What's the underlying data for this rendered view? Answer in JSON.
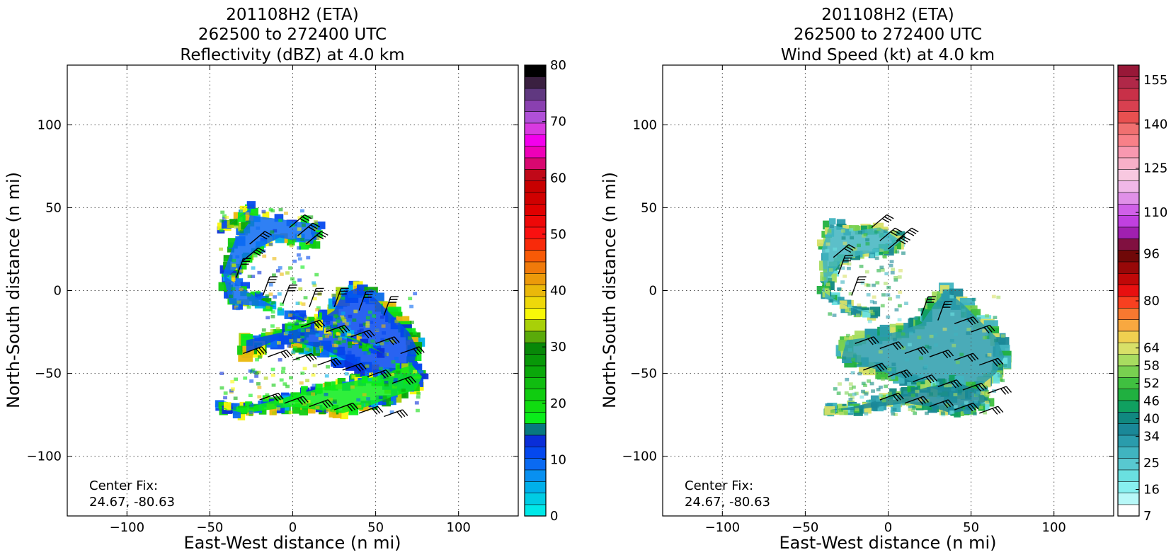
{
  "chart_data": [
    {
      "type": "heatmap",
      "panel": "left",
      "title_lines": [
        "201108H2 (ETA)",
        "262500 to 272400 UTC",
        "Reflectivity (dBZ) at 4.0 km"
      ],
      "xlabel": "East-West distance (n mi)",
      "ylabel": "North-South distance (n mi)",
      "xlim": [
        -136,
        136
      ],
      "ylim": [
        -136,
        136
      ],
      "x_ticks": [
        -100,
        -50,
        0,
        50,
        100
      ],
      "y_ticks": [
        -100,
        -50,
        0,
        50,
        100
      ],
      "x_tick_labels": [
        "−100",
        "−50",
        "0",
        "50",
        "100"
      ],
      "y_tick_labels": [
        "−100",
        "−50",
        "0",
        "50",
        "100"
      ],
      "grid": true,
      "annotation": [
        "Center Fix:",
        "24.67, -80.63"
      ],
      "colorbar": {
        "min": 0,
        "max": 80,
        "tick_values": [
          0,
          10,
          20,
          30,
          40,
          50,
          60,
          70,
          80
        ],
        "tick_labels": [
          "0",
          "10",
          "20",
          "30",
          "40",
          "50",
          "60",
          "70",
          "80"
        ],
        "colors": [
          "#00e8e8",
          "#00cce4",
          "#00b0ea",
          "#0890f0",
          "#0a6af2",
          "#0448ee",
          "#0a2ed8",
          "#087880",
          "#0aec1a",
          "#10dc10",
          "#10cc10",
          "#10bc10",
          "#0aa80a",
          "#089808",
          "#088808",
          "#5aaa0a",
          "#a8d008",
          "#f8f808",
          "#eed80a",
          "#eab80a",
          "#ec9a0a",
          "#f07a0a",
          "#f85a06",
          "#f82a0a",
          "#fa1010",
          "#ee0808",
          "#e00000",
          "#d00000",
          "#c80000",
          "#c00818",
          "#d80870",
          "#ee00b8",
          "#f200ec",
          "#d83ae0",
          "#b050d8",
          "#8a40b0",
          "#603880",
          "#3a2040",
          "#000000"
        ]
      },
      "echo_regions": [
        {
          "x": [
            -30,
            15,
            12,
            -8,
            -20,
            -32,
            -40,
            -22,
            -10,
            -38,
            -42,
            -35,
            -27,
            -25,
            -45
          ],
          "y": [
            46,
            40,
            28,
            32,
            26,
            15,
            8,
            -4,
            -10,
            -8,
            10,
            30,
            40,
            50,
            35
          ],
          "r": 5
        },
        {
          "x": [
            -28,
            -10,
            10,
            25,
            30,
            40,
            50,
            60,
            70,
            75,
            72,
            62,
            50,
            38,
            28,
            18,
            5,
            -10,
            -22,
            -28
          ],
          "y": [
            -30,
            -26,
            -22,
            -12,
            -2,
            2,
            -5,
            -15,
            -25,
            -35,
            -50,
            -58,
            -52,
            -45,
            -40,
            -35,
            -32,
            -30,
            -35,
            -38
          ],
          "r": 7
        },
        {
          "x": [
            -40,
            -25,
            -10,
            5,
            20,
            35,
            50,
            62,
            72,
            78,
            74,
            60,
            45,
            30,
            15,
            0,
            -15,
            -30,
            -45
          ],
          "y": [
            -72,
            -70,
            -66,
            -62,
            -58,
            -55,
            -52,
            -48,
            -45,
            -52,
            -60,
            -64,
            -70,
            -74,
            -72,
            -70,
            -72,
            -74,
            -70
          ],
          "r": 5
        },
        {
          "x": [
            -5,
            10,
            25,
            40,
            55
          ],
          "y": [
            -12,
            -18,
            -25,
            -30,
            -38
          ],
          "r": 5
        }
      ],
      "barbs": [
        {
          "x": [
            -2,
            3,
            8,
            -26,
            -30,
            -34,
            -18,
            -6,
            10,
            25,
            40,
            55,
            5,
            20,
            35,
            50,
            65,
            -30,
            -15,
            0,
            15,
            30,
            45,
            60,
            -20,
            -5,
            10,
            25,
            40,
            55
          ],
          "y": [
            38,
            33,
            28,
            28,
            18,
            8,
            -3,
            -8,
            -10,
            -10,
            -12,
            -15,
            -22,
            -25,
            -28,
            -32,
            -38,
            -38,
            -40,
            -42,
            -45,
            -48,
            -52,
            -56,
            -66,
            -68,
            -70,
            -72,
            -74,
            -76
          ]
        }
      ]
    },
    {
      "type": "heatmap",
      "panel": "right",
      "title_lines": [
        "201108H2 (ETA)",
        "262500 to 272400 UTC",
        "Wind Speed (kt) at 4.0 km"
      ],
      "xlabel": "East-West distance (n mi)",
      "ylabel": "North-South distance (n mi)",
      "xlim": [
        -136,
        136
      ],
      "ylim": [
        -136,
        136
      ],
      "x_ticks": [
        -100,
        -50,
        0,
        50,
        100
      ],
      "y_ticks": [
        -100,
        -50,
        0,
        50,
        100
      ],
      "x_tick_labels": [
        "−100",
        "−50",
        "0",
        "50",
        "100"
      ],
      "y_tick_labels": [
        "−100",
        "−50",
        "0",
        "50",
        "100"
      ],
      "grid": true,
      "annotation": [
        "Center Fix:",
        "24.67, -80.63"
      ],
      "colorbar": {
        "min": 7,
        "max": 160,
        "tick_values": [
          7,
          16,
          25,
          34,
          40,
          46,
          52,
          58,
          64,
          80,
          96,
          110,
          125,
          140,
          155
        ],
        "tick_labels": [
          "7",
          "16",
          "25",
          "34",
          "40",
          "46",
          "52",
          "58",
          "64",
          "80",
          "96",
          "110",
          "125",
          "140",
          "155"
        ],
        "colors": [
          "#ffffff",
          "#b8f8f8",
          "#88f0f0",
          "#6ae0e0",
          "#58c8d0",
          "#40b4c0",
          "#2a9cac",
          "#1a8898",
          "#108880",
          "#10a060",
          "#20b040",
          "#40c040",
          "#78d050",
          "#a8dc60",
          "#d8e068",
          "#f0d050",
          "#f8a840",
          "#f87830",
          "#f84020",
          "#e81010",
          "#c00808",
          "#980808",
          "#700808",
          "#801040",
          "#a020b0",
          "#c040e0",
          "#d060e8",
          "#e090e8",
          "#f0b8e8",
          "#f8c8e0",
          "#f8b0c8",
          "#f898b0",
          "#f88088",
          "#f07070",
          "#e85050",
          "#d84050",
          "#c83048",
          "#b02848",
          "#981838"
        ]
      },
      "echo_regions": [
        {
          "x": [
            -35,
            -20,
            -5,
            8,
            0,
            -15,
            -28,
            -35,
            -40,
            -28,
            -18,
            -8,
            -38,
            -40
          ],
          "y": [
            40,
            36,
            38,
            30,
            24,
            22,
            18,
            8,
            0,
            -8,
            -12,
            -14,
            -5,
            25
          ],
          "r": 5
        },
        {
          "x": [
            -25,
            -10,
            5,
            20,
            28,
            35,
            45,
            55,
            65,
            70,
            65,
            55,
            42,
            30,
            15,
            0,
            -15,
            -28
          ],
          "y": [
            -30,
            -28,
            -25,
            -20,
            -8,
            0,
            -8,
            -18,
            -28,
            -40,
            -50,
            -58,
            -62,
            -60,
            -55,
            -50,
            -45,
            -40
          ],
          "r": 7
        },
        {
          "x": [
            -35,
            -20,
            -5,
            10,
            25,
            40,
            55,
            60,
            50,
            38,
            25,
            10,
            -5,
            -20,
            -35
          ],
          "y": [
            -72,
            -70,
            -66,
            -62,
            -58,
            -55,
            -60,
            -66,
            -72,
            -74,
            -70,
            -68,
            -70,
            -72,
            -72
          ],
          "r": 5
        }
      ],
      "barbs": [
        {
          "x": [
            -10,
            -5,
            0,
            5,
            -33,
            -30,
            -22,
            20,
            30,
            40,
            50,
            -20,
            -5,
            10,
            25,
            40,
            55,
            -15,
            0,
            15,
            30,
            45,
            60,
            -5,
            10,
            25,
            40,
            55
          ],
          "y": [
            38,
            30,
            25,
            30,
            20,
            10,
            -3,
            -15,
            -18,
            -20,
            -25,
            -32,
            -35,
            -38,
            -40,
            -42,
            -45,
            -48,
            -52,
            -55,
            -58,
            -60,
            -62,
            -66,
            -68,
            -70,
            -72,
            -74
          ]
        }
      ]
    }
  ]
}
